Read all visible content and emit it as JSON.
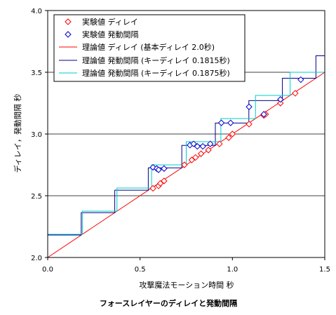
{
  "chart_data": {
    "type": "line",
    "title": "フォースレイヤーのディレイと発動間隔",
    "xlabel": "攻撃魔法モーション時間 秒",
    "ylabel": "ディレイ，発動間隔 秒",
    "xlim": [
      0,
      1.5
    ],
    "ylim": [
      2.0,
      4.0
    ],
    "x_ticks": [
      "0.0",
      "0.5",
      "1.0",
      "1.5"
    ],
    "y_ticks": [
      "2.0",
      "2.5",
      "3.0",
      "3.5",
      "4.0"
    ],
    "x_tick_values": [
      0,
      0.5,
      1.0,
      1.5
    ],
    "y_tick_values": [
      2.0,
      2.5,
      3.0,
      3.5,
      4.0
    ],
    "grid": true,
    "legend_position": "top-left",
    "legend": [
      "実験値 ディレイ",
      "実験値 発動間隔",
      "理論値 ディレイ (基本ディレイ 2.0秒)",
      "理論値 発動間隔 (キーディレイ 0.1815秒)",
      "理論値 発動間隔 (キーディレイ 0.1875秒)"
    ],
    "series": [
      {
        "name": "実験値 ディレイ",
        "kind": "markers",
        "marker": "diamond",
        "color": "#ff0000",
        "points": [
          [
            0.57,
            2.56
          ],
          [
            0.6,
            2.58
          ],
          [
            0.61,
            2.6
          ],
          [
            0.63,
            2.62
          ],
          [
            0.74,
            2.75
          ],
          [
            0.78,
            2.79
          ],
          [
            0.8,
            2.81
          ],
          [
            0.83,
            2.84
          ],
          [
            0.87,
            2.87
          ],
          [
            0.93,
            2.92
          ],
          [
            0.98,
            2.97
          ],
          [
            1.0,
            3.0
          ],
          [
            1.09,
            3.08
          ],
          [
            1.17,
            3.15
          ],
          [
            1.18,
            3.16
          ],
          [
            1.26,
            3.25
          ],
          [
            1.34,
            3.33
          ]
        ]
      },
      {
        "name": "実験値 発動間隔",
        "kind": "markers",
        "marker": "diamond",
        "color": "#0000cc",
        "points": [
          [
            0.57,
            2.73
          ],
          [
            0.59,
            2.72
          ],
          [
            0.6,
            2.71
          ],
          [
            0.63,
            2.72
          ],
          [
            0.77,
            2.91
          ],
          [
            0.79,
            2.92
          ],
          [
            0.81,
            2.9
          ],
          [
            0.84,
            2.9
          ],
          [
            0.88,
            2.92
          ],
          [
            0.94,
            3.09
          ],
          [
            0.99,
            3.09
          ],
          [
            1.09,
            3.22
          ],
          [
            1.17,
            3.16
          ],
          [
            1.26,
            3.28
          ],
          [
            1.37,
            3.44
          ]
        ]
      },
      {
        "name": "理論値 ディレイ (基本ディレイ 2.0秒)",
        "kind": "line",
        "color": "#ff0000",
        "points": [
          [
            0,
            2.0
          ],
          [
            1.5,
            3.5
          ]
        ]
      },
      {
        "name": "理論値 発動間隔 (キーディレイ 0.1815秒)",
        "kind": "step",
        "color": "#00008b",
        "key_delay": 0.1815
      },
      {
        "name": "理論値 発動間隔 (キーディレイ 0.1875秒)",
        "kind": "step",
        "color": "#00cccc",
        "key_delay": 0.1875
      }
    ]
  }
}
